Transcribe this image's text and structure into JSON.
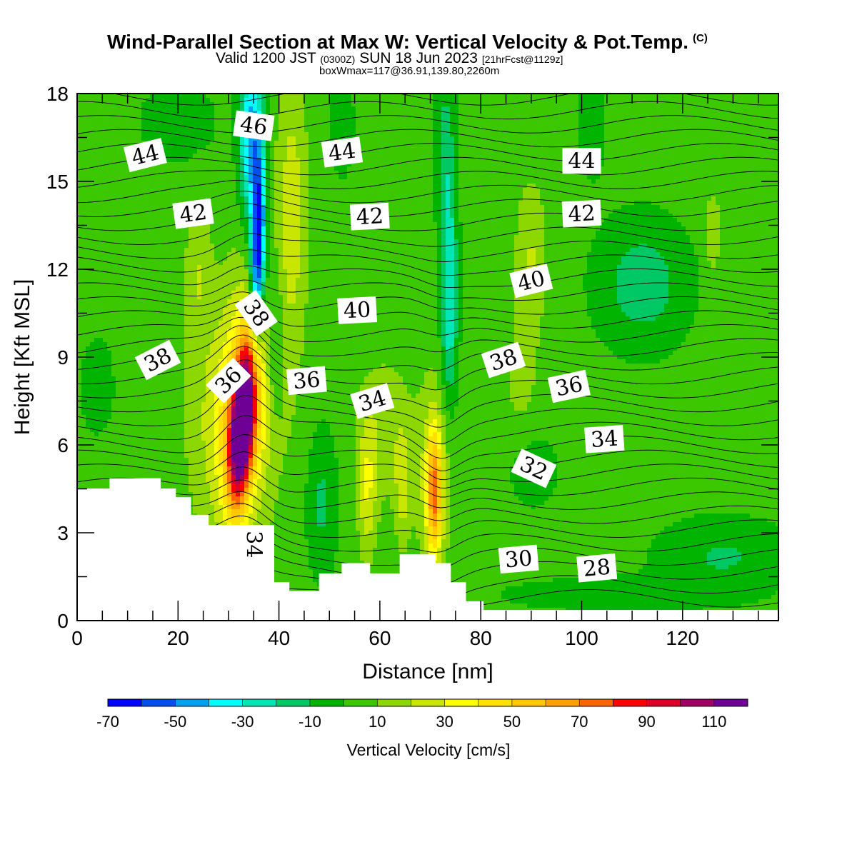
{
  "header": {
    "title": "Wind-Parallel Section at Max W: Vertical Velocity & Pot.Temp.",
    "copyright": "(C)",
    "valid_pre": "Valid 1200 JST",
    "valid_utc": "(0300Z)",
    "valid_date": "SUN 18 Jun 2023",
    "forecast": "[21hrFcst@1129z]",
    "box_info": "boxWmax=117@36.91,139.80,2260m"
  },
  "chart_data": {
    "type": "heatmap",
    "xlabel": "Distance [nm]",
    "ylabel": "Height [Kft MSL]",
    "xlim": [
      0,
      139
    ],
    "ylim": [
      0,
      18
    ],
    "x_ticks": [
      0,
      20,
      40,
      60,
      80,
      100,
      120
    ],
    "y_ticks": [
      0,
      3,
      6,
      9,
      12,
      15,
      18
    ],
    "colorbar": {
      "title": "Vertical Velocity [cm/s]",
      "tick_labels": [
        "-70",
        "-50",
        "-30",
        "-10",
        "10",
        "30",
        "50",
        "70",
        "90",
        "110"
      ],
      "levels": [
        -70,
        -60,
        -50,
        -40,
        -30,
        -20,
        -10,
        0,
        10,
        20,
        30,
        40,
        50,
        60,
        70,
        80,
        90,
        100,
        110,
        120
      ],
      "colors": [
        "#0000ff",
        "#0050f0",
        "#00a0f0",
        "#00ffff",
        "#00e6b4",
        "#00c864",
        "#00b400",
        "#3cc800",
        "#8cd700",
        "#c8e600",
        "#ffff00",
        "#ffe100",
        "#ffc800",
        "#ffa000",
        "#ff6400",
        "#ff0000",
        "#dc0028",
        "#a00064",
        "#6e0096"
      ]
    },
    "vertical_velocity_features": [
      {
        "x": [
          25,
          40
        ],
        "y": [
          3.3,
          11
        ],
        "max": 117,
        "note": "updraft core"
      },
      {
        "x": [
          32,
          39
        ],
        "y": [
          9,
          18
        ],
        "min": -70,
        "note": "downdraft"
      },
      {
        "x": [
          66,
          76
        ],
        "y": [
          2.5,
          8
        ],
        "max": 55
      },
      {
        "x": [
          55,
          62
        ],
        "y": [
          2,
          7
        ],
        "max": 30
      },
      {
        "x": [
          70,
          75
        ],
        "y": [
          8,
          18
        ],
        "min": -35
      }
    ],
    "theta_contour_labels": [
      {
        "value": "46",
        "x": 35,
        "y": 16.9,
        "rot": 8
      },
      {
        "value": "44",
        "x": 13.5,
        "y": 15.9,
        "rot": -14
      },
      {
        "value": "44",
        "x": 52.5,
        "y": 16,
        "rot": -8
      },
      {
        "value": "44",
        "x": 100,
        "y": 15.7,
        "rot": 0
      },
      {
        "value": "42",
        "x": 23,
        "y": 13.9,
        "rot": -8
      },
      {
        "value": "42",
        "x": 58,
        "y": 13.8,
        "rot": -3
      },
      {
        "value": "42",
        "x": 100,
        "y": 13.9,
        "rot": -3
      },
      {
        "value": "40",
        "x": 55.5,
        "y": 10.6,
        "rot": -3
      },
      {
        "value": "40",
        "x": 90,
        "y": 11.6,
        "rot": -14
      },
      {
        "value": "38",
        "x": 35.5,
        "y": 10.5,
        "rot": 55
      },
      {
        "value": "38",
        "x": 16,
        "y": 8.9,
        "rot": -27
      },
      {
        "value": "38",
        "x": 84.5,
        "y": 8.9,
        "rot": -18
      },
      {
        "value": "36",
        "x": 30,
        "y": 8.2,
        "rot": -45
      },
      {
        "value": "36",
        "x": 45.5,
        "y": 8.2,
        "rot": -5
      },
      {
        "value": "36",
        "x": 97.5,
        "y": 8.0,
        "rot": -12
      },
      {
        "value": "34",
        "x": 58.5,
        "y": 7.5,
        "rot": -17
      },
      {
        "value": "34",
        "x": 104.5,
        "y": 6.2,
        "rot": -4
      },
      {
        "value": "34",
        "x": 35,
        "y": 2.6,
        "rot": 90
      },
      {
        "value": "32",
        "x": 90.5,
        "y": 5.2,
        "rot": 25
      },
      {
        "value": "30",
        "x": 87.5,
        "y": 2.1,
        "rot": -5
      },
      {
        "value": "28",
        "x": 103,
        "y": 1.8,
        "rot": -5
      }
    ]
  }
}
